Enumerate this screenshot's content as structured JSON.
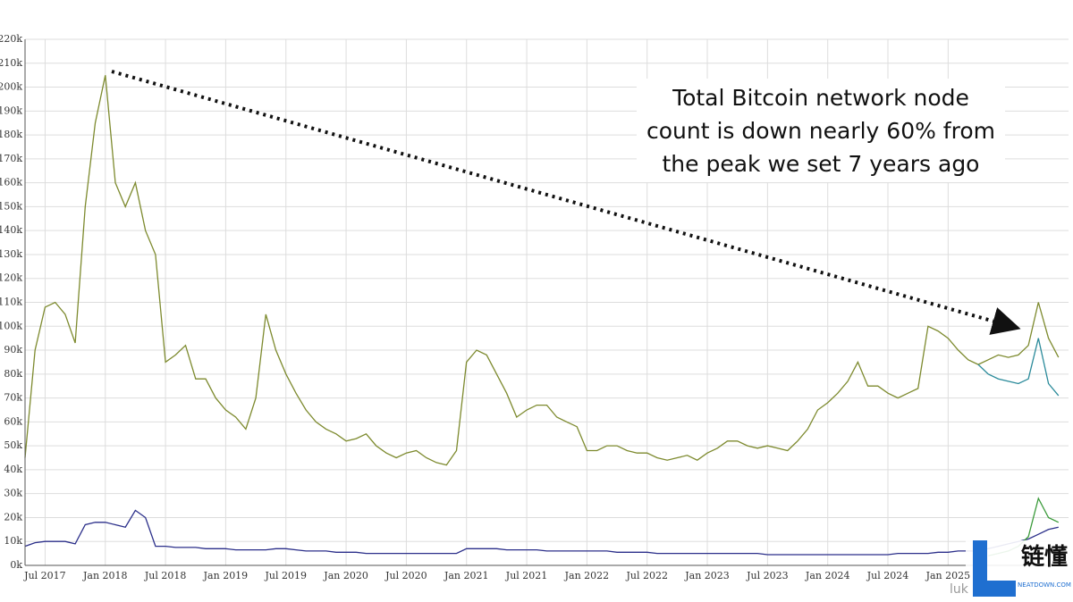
{
  "chart_data": {
    "type": "line",
    "annotation": [
      "Total Bitcoin network node",
      "count is down nearly 60% from",
      "the peak we set 7 years ago"
    ],
    "x": [
      "2017-05",
      "2017-06",
      "2017-07",
      "2017-08",
      "2017-09",
      "2017-10",
      "2017-11",
      "2017-12",
      "2018-01",
      "2018-02",
      "2018-03",
      "2018-04",
      "2018-05",
      "2018-06",
      "2018-07",
      "2018-08",
      "2018-09",
      "2018-10",
      "2018-11",
      "2018-12",
      "2019-01",
      "2019-02",
      "2019-03",
      "2019-04",
      "2019-05",
      "2019-06",
      "2019-07",
      "2019-08",
      "2019-09",
      "2019-10",
      "2019-11",
      "2019-12",
      "2020-01",
      "2020-02",
      "2020-03",
      "2020-04",
      "2020-05",
      "2020-06",
      "2020-07",
      "2020-08",
      "2020-09",
      "2020-10",
      "2020-11",
      "2020-12",
      "2021-01",
      "2021-02",
      "2021-03",
      "2021-04",
      "2021-05",
      "2021-06",
      "2021-07",
      "2021-08",
      "2021-09",
      "2021-10",
      "2021-11",
      "2021-12",
      "2022-01",
      "2022-02",
      "2022-03",
      "2022-04",
      "2022-05",
      "2022-06",
      "2022-07",
      "2022-08",
      "2022-09",
      "2022-10",
      "2022-11",
      "2022-12",
      "2023-01",
      "2023-02",
      "2023-03",
      "2023-04",
      "2023-05",
      "2023-06",
      "2023-07",
      "2023-08",
      "2023-09",
      "2023-10",
      "2023-11",
      "2023-12",
      "2024-01",
      "2024-02",
      "2024-03",
      "2024-04",
      "2024-05",
      "2024-06",
      "2024-07",
      "2024-08",
      "2024-09",
      "2024-10",
      "2024-11",
      "2024-12",
      "2025-01",
      "2025-02",
      "2025-03",
      "2025-04",
      "2025-05",
      "2025-06",
      "2025-07",
      "2025-08",
      "2025-09",
      "2025-10",
      "2025-11",
      "2025-12"
    ],
    "series": [
      {
        "color": "#7d8a2e",
        "values": [
          45,
          90,
          108,
          110,
          105,
          93,
          150,
          185,
          205,
          160,
          150,
          160,
          140,
          130,
          85,
          88,
          92,
          78,
          78,
          70,
          65,
          62,
          57,
          70,
          105,
          90,
          80,
          72,
          65,
          60,
          57,
          55,
          52,
          53,
          55,
          50,
          47,
          45,
          47,
          48,
          45,
          43,
          42,
          48,
          85,
          90,
          88,
          80,
          72,
          62,
          65,
          67,
          67,
          62,
          60,
          58,
          48,
          48,
          50,
          50,
          48,
          47,
          47,
          45,
          44,
          45,
          46,
          44,
          47,
          49,
          52,
          52,
          50,
          49,
          50,
          49,
          48,
          52,
          57,
          65,
          68,
          72,
          77,
          85,
          75,
          75,
          72,
          70,
          72,
          74,
          100,
          98,
          95,
          90,
          86,
          84,
          86,
          88,
          87,
          88,
          92,
          110,
          95,
          87
        ]
      },
      {
        "color": "#2a8a9a",
        "values": [
          null,
          null,
          null,
          null,
          null,
          null,
          null,
          null,
          null,
          null,
          null,
          null,
          null,
          null,
          null,
          null,
          null,
          null,
          null,
          null,
          null,
          null,
          null,
          null,
          null,
          null,
          null,
          null,
          null,
          null,
          null,
          null,
          null,
          null,
          null,
          null,
          null,
          null,
          null,
          null,
          null,
          null,
          null,
          null,
          null,
          null,
          null,
          null,
          null,
          null,
          null,
          null,
          null,
          null,
          null,
          null,
          null,
          null,
          null,
          null,
          null,
          null,
          null,
          null,
          null,
          null,
          null,
          null,
          null,
          null,
          null,
          null,
          null,
          null,
          null,
          null,
          null,
          null,
          null,
          null,
          null,
          null,
          null,
          null,
          null,
          null,
          null,
          null,
          null,
          null,
          null,
          null,
          null,
          null,
          null,
          84,
          80,
          78,
          77,
          76,
          78,
          95,
          76,
          71
        ]
      },
      {
        "color": "#2b2f8a",
        "values": [
          8,
          9.5,
          10,
          10,
          10,
          9,
          17,
          18,
          18,
          17,
          16,
          23,
          20,
          8,
          8,
          7.5,
          7.5,
          7.5,
          7,
          7,
          7,
          6.5,
          6.5,
          6.5,
          6.5,
          7,
          7,
          6.5,
          6,
          6,
          6,
          5.5,
          5.5,
          5.5,
          5,
          5,
          5,
          5,
          5,
          5,
          5,
          5,
          5,
          5,
          7,
          7,
          7,
          7,
          6.5,
          6.5,
          6.5,
          6.5,
          6,
          6,
          6,
          6,
          6,
          6,
          6,
          5.5,
          5.5,
          5.5,
          5.5,
          5,
          5,
          5,
          5,
          5,
          5,
          5,
          5,
          5,
          5,
          5,
          4.5,
          4.5,
          4.5,
          4.5,
          4.5,
          4.5,
          4.5,
          4.5,
          4.5,
          4.5,
          4.5,
          4.5,
          4.5,
          5,
          5,
          5,
          5,
          5.5,
          5.5,
          6,
          6,
          6,
          7,
          8,
          9,
          10,
          11,
          13,
          15,
          16
        ]
      },
      {
        "color": "#3a9a3a",
        "values": [
          null,
          null,
          null,
          null,
          null,
          null,
          null,
          null,
          null,
          null,
          null,
          null,
          null,
          null,
          null,
          null,
          null,
          null,
          null,
          null,
          null,
          null,
          null,
          null,
          null,
          null,
          null,
          null,
          null,
          null,
          null,
          null,
          null,
          null,
          null,
          null,
          null,
          null,
          null,
          null,
          null,
          null,
          null,
          null,
          null,
          null,
          null,
          null,
          null,
          null,
          null,
          null,
          null,
          null,
          null,
          null,
          null,
          null,
          null,
          null,
          null,
          null,
          null,
          null,
          null,
          null,
          null,
          null,
          null,
          null,
          null,
          null,
          null,
          null,
          null,
          null,
          null,
          null,
          null,
          null,
          null,
          null,
          null,
          null,
          null,
          null,
          null,
          null,
          null,
          null,
          null,
          null,
          null,
          null,
          null,
          null,
          4,
          5,
          6,
          8,
          12,
          28,
          20,
          18
        ]
      }
    ],
    "xlim": [
      "2017-05",
      "2026-01"
    ],
    "xticks": [
      {
        "value": "2017-07",
        "label": "Jul 2017"
      },
      {
        "value": "2018-01",
        "label": "Jan 2018"
      },
      {
        "value": "2018-07",
        "label": "Jul 2018"
      },
      {
        "value": "2019-01",
        "label": "Jan 2019"
      },
      {
        "value": "2019-07",
        "label": "Jul 2019"
      },
      {
        "value": "2020-01",
        "label": "Jan 2020"
      },
      {
        "value": "2020-07",
        "label": "Jul 2020"
      },
      {
        "value": "2021-01",
        "label": "Jan 2021"
      },
      {
        "value": "2021-07",
        "label": "Jul 2021"
      },
      {
        "value": "2022-01",
        "label": "Jan 2022"
      },
      {
        "value": "2022-07",
        "label": "Jul 2022"
      },
      {
        "value": "2023-01",
        "label": "Jan 2023"
      },
      {
        "value": "2023-07",
        "label": "Jul 2023"
      },
      {
        "value": "2024-01",
        "label": "Jan 2024"
      },
      {
        "value": "2024-07",
        "label": "Jul 2024"
      },
      {
        "value": "2025-01",
        "label": "Jan 2025"
      }
    ],
    "ylim": [
      0,
      220
    ],
    "yticks": [
      {
        "value": 0,
        "label": "0k"
      },
      {
        "value": 10,
        "label": "10k"
      },
      {
        "value": 20,
        "label": "20k"
      },
      {
        "value": 30,
        "label": "30k"
      },
      {
        "value": 40,
        "label": "40k"
      },
      {
        "value": 50,
        "label": "50k"
      },
      {
        "value": 60,
        "label": "60k"
      },
      {
        "value": 70,
        "label": "70k"
      },
      {
        "value": 80,
        "label": "80k"
      },
      {
        "value": 90,
        "label": "90k"
      },
      {
        "value": 100,
        "label": "100k"
      },
      {
        "value": 110,
        "label": "110k"
      },
      {
        "value": 120,
        "label": "120k"
      },
      {
        "value": 130,
        "label": "130k"
      },
      {
        "value": 140,
        "label": "140k"
      },
      {
        "value": 150,
        "label": "150k"
      },
      {
        "value": 160,
        "label": "160k"
      },
      {
        "value": 170,
        "label": "170k"
      },
      {
        "value": 180,
        "label": "180k"
      },
      {
        "value": 190,
        "label": "190k"
      },
      {
        "value": 200,
        "label": "200k"
      },
      {
        "value": 210,
        "label": "210k"
      },
      {
        "value": 220,
        "label": "220k"
      }
    ],
    "grid": true
  },
  "watermark": {
    "logo": "链懂",
    "site": "NEATDOWN.COM",
    "credit": "luk"
  }
}
